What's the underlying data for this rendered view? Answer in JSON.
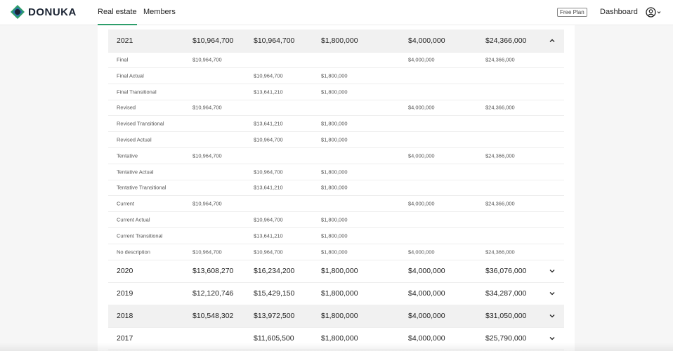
{
  "nav": {
    "logo": "DONUKA",
    "links": [
      "Real estate",
      "Members"
    ],
    "active_link": 0,
    "plan": "Free Plan",
    "dashboard": "Dashboard"
  },
  "table": {
    "groups": [
      {
        "year": "2021",
        "totals": [
          "$10,964,700",
          "$10,964,700",
          "$1,800,000",
          "$4,000,000",
          "$24,366,000"
        ],
        "expanded": true,
        "highlighted": true,
        "rows": [
          {
            "label": "Final",
            "cells": [
              "$10,964,700",
              null,
              null,
              "$4,000,000",
              "$24,366,000"
            ]
          },
          {
            "label": "Final Actual",
            "cells": [
              null,
              "$10,964,700",
              "$1,800,000",
              null,
              null
            ]
          },
          {
            "label": "Final Transitional",
            "cells": [
              null,
              "$13,641,210",
              "$1,800,000",
              null,
              null
            ]
          },
          {
            "label": "Revised",
            "cells": [
              "$10,964,700",
              null,
              null,
              "$4,000,000",
              "$24,366,000"
            ]
          },
          {
            "label": "Revised Transitional",
            "cells": [
              null,
              "$13,641,210",
              "$1,800,000",
              null,
              null
            ]
          },
          {
            "label": "Revised Actual",
            "cells": [
              null,
              "$10,964,700",
              "$1,800,000",
              null,
              null
            ]
          },
          {
            "label": "Tentative",
            "cells": [
              "$10,964,700",
              null,
              null,
              "$4,000,000",
              "$24,366,000"
            ]
          },
          {
            "label": "Tentative Actual",
            "cells": [
              null,
              "$10,964,700",
              "$1,800,000",
              null,
              null
            ]
          },
          {
            "label": "Tentative Transitional",
            "cells": [
              null,
              "$13,641,210",
              "$1,800,000",
              null,
              null
            ]
          },
          {
            "label": "Current",
            "cells": [
              "$10,964,700",
              null,
              null,
              "$4,000,000",
              "$24,366,000"
            ]
          },
          {
            "label": "Current Actual",
            "cells": [
              null,
              "$10,964,700",
              "$1,800,000",
              null,
              null
            ]
          },
          {
            "label": "Current Transitional",
            "cells": [
              null,
              "$13,641,210",
              "$1,800,000",
              null,
              null
            ]
          },
          {
            "label": "No description",
            "cells": [
              "$10,964,700",
              "$10,964,700",
              "$1,800,000",
              "$4,000,000",
              "$24,366,000"
            ]
          }
        ]
      },
      {
        "year": "2020",
        "totals": [
          "$13,608,270",
          "$16,234,200",
          "$1,800,000",
          "$4,000,000",
          "$36,076,000"
        ],
        "expanded": false,
        "highlighted": false
      },
      {
        "year": "2019",
        "totals": [
          "$12,120,746",
          "$15,429,150",
          "$1,800,000",
          "$4,000,000",
          "$34,287,000"
        ],
        "expanded": false,
        "highlighted": false
      },
      {
        "year": "2018",
        "totals": [
          "$10,548,302",
          "$13,972,500",
          "$1,800,000",
          "$4,000,000",
          "$31,050,000"
        ],
        "expanded": false,
        "highlighted": true
      },
      {
        "year": "2017",
        "totals": [
          null,
          "$11,605,500",
          "$1,800,000",
          "$4,000,000",
          "$25,790,000"
        ],
        "expanded": false,
        "highlighted": false
      }
    ]
  }
}
